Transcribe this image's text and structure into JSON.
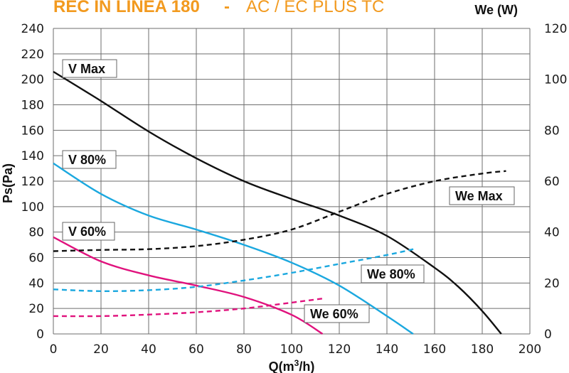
{
  "title": {
    "main": "REC IN LINEA 180",
    "separator": "-",
    "subtitle": "AC  /  EC PLUS TC"
  },
  "chart_data": {
    "type": "line",
    "xlabel_base": "Q(m",
    "xlabel_sup": "3",
    "xlabel_tail": "/h)",
    "ylabel_left": "Ps(Pa)",
    "ylabel_right": "We (W)",
    "xlim": [
      0,
      200
    ],
    "ylim_left": [
      0,
      240
    ],
    "ylim_right": [
      0,
      120
    ],
    "x_ticks": [
      "0",
      "20",
      "40",
      "60",
      "80",
      "100",
      "120",
      "140",
      "160",
      "180",
      "200"
    ],
    "y_left_ticks": [
      "0",
      "20",
      "40",
      "60",
      "80",
      "100",
      "120",
      "140",
      "160",
      "180",
      "200",
      "220",
      "240"
    ],
    "y_right_ticks": [
      "0",
      "20",
      "40",
      "60",
      "80",
      "100",
      "120"
    ],
    "grid": true,
    "series": [
      {
        "name": "V Max",
        "axis": "left",
        "color": "#111111",
        "dash": false,
        "x": [
          0,
          20,
          40,
          60,
          80,
          100,
          120,
          140,
          160,
          170,
          180,
          188
        ],
        "y": [
          206,
          183,
          159,
          138,
          120,
          106,
          93,
          77,
          52,
          37,
          18,
          0
        ]
      },
      {
        "name": "V 80%",
        "axis": "left",
        "color": "#1ba8df",
        "dash": false,
        "x": [
          0,
          20,
          40,
          60,
          80,
          100,
          120,
          140,
          151
        ],
        "y": [
          134,
          110,
          93,
          82,
          70,
          56,
          38,
          14,
          0
        ]
      },
      {
        "name": "V 60%",
        "axis": "left",
        "color": "#e0127d",
        "dash": false,
        "x": [
          0,
          20,
          40,
          60,
          80,
          100,
          113
        ],
        "y": [
          76,
          57,
          46,
          38,
          29,
          15,
          0
        ]
      },
      {
        "name": "We Max",
        "axis": "right",
        "color": "#111111",
        "dash": true,
        "x": [
          0,
          20,
          40,
          60,
          80,
          100,
          120,
          140,
          160,
          180,
          190
        ],
        "y": [
          32.5,
          33,
          33.3,
          34.5,
          37,
          41,
          48,
          55,
          60,
          63,
          64
        ]
      },
      {
        "name": "We 80%",
        "axis": "right",
        "color": "#1ba8df",
        "dash": true,
        "x": [
          0,
          20,
          40,
          60,
          80,
          100,
          120,
          140,
          152
        ],
        "y": [
          17.5,
          16.8,
          17.2,
          18.5,
          21,
          24,
          27.5,
          31,
          33.5
        ]
      },
      {
        "name": "We 60%",
        "axis": "right",
        "color": "#e0127d",
        "dash": true,
        "x": [
          0,
          20,
          40,
          60,
          80,
          100,
          114
        ],
        "y": [
          7,
          7,
          7.6,
          8.5,
          10,
          12.3,
          14
        ]
      }
    ],
    "curve_labels": [
      "V Max",
      "V 80%",
      "V 60%",
      "We Max",
      "We 80%",
      "We 60%"
    ]
  }
}
